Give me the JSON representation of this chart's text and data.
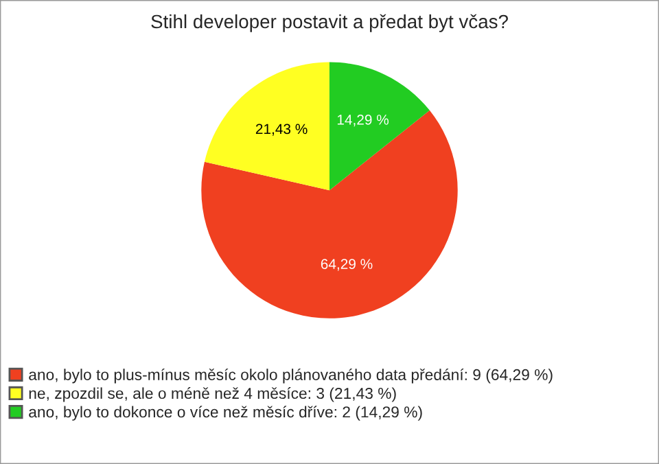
{
  "chart_data": {
    "type": "pie",
    "title": "Stihl developer postavit a předat byt včas?",
    "categories": [
      "ano, bylo to plus-mínus měsíc okolo plánovaného data předání: 9 (64,29 %)",
      "ne, zpozdil se, ale o méně než 4 měsíce: 3 (21,43 %)",
      "ano, bylo to dokonce o více než měsíc dříve: 2 (14,29 %)"
    ],
    "values": [
      64.29,
      21.43,
      14.29
    ],
    "value_labels": [
      "64,29 %",
      "21,43 %",
      "14,29 %"
    ],
    "colors": [
      "#f04020",
      "#ffff22",
      "#22cc22"
    ],
    "legend": "bottom left"
  }
}
